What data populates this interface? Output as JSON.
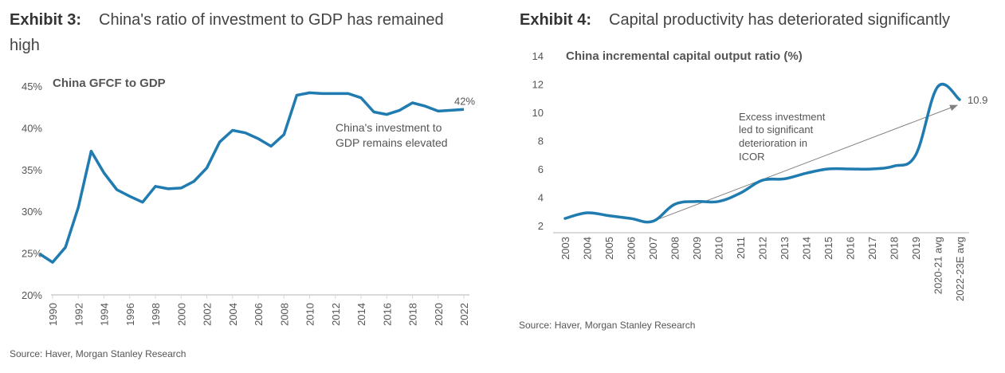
{
  "exhibit3": {
    "label": "Exhibit 3:",
    "title": "China's ratio of investment to GDP has remained high",
    "source": "Source: Haver, Morgan Stanley Research"
  },
  "exhibit4": {
    "label": "Exhibit 4:",
    "title": "Capital productivity has deteriorated significantly",
    "source": "Source: Haver, Morgan Stanley Research"
  },
  "colors": {
    "series": "#1f7bb0",
    "axis": "#d9d9d9",
    "arrow": "#808080",
    "text": "#555555"
  },
  "chart_data": [
    {
      "type": "line",
      "title": "China GFCF to GDP",
      "xlabel": "",
      "ylabel": "",
      "ylim": [
        20,
        45
      ],
      "yticks": [
        "20%",
        "25%",
        "30%",
        "35%",
        "40%",
        "45%"
      ],
      "ytick_values": [
        20,
        25,
        30,
        35,
        40,
        45
      ],
      "xticks": [
        "1990",
        "1992",
        "1994",
        "1996",
        "1998",
        "2000",
        "2002",
        "2004",
        "2006",
        "2008",
        "2010",
        "2012",
        "2014",
        "2016",
        "2018",
        "2020",
        "2022"
      ],
      "grid": false,
      "legend": "none",
      "x": [
        1989,
        1990,
        1991,
        1992,
        1993,
        1994,
        1995,
        1996,
        1997,
        1998,
        1999,
        2000,
        2001,
        2002,
        2003,
        2004,
        2005,
        2006,
        2007,
        2008,
        2009,
        2010,
        2011,
        2012,
        2013,
        2014,
        2015,
        2016,
        2017,
        2018,
        2019,
        2020,
        2021,
        2022
      ],
      "series": [
        {
          "name": "China GFCF to GDP (%)",
          "values": [
            24.9,
            23.9,
            25.7,
            30.5,
            37.2,
            34.6,
            32.6,
            31.8,
            31.1,
            33.0,
            32.7,
            32.8,
            33.6,
            35.2,
            38.3,
            39.7,
            39.4,
            38.7,
            37.8,
            39.2,
            43.9,
            44.2,
            44.1,
            44.1,
            44.1,
            43.6,
            41.9,
            41.6,
            42.1,
            43.0,
            42.6,
            42.0,
            42.1,
            42.2
          ]
        }
      ],
      "end_label": "42%",
      "annotation": [
        "China's investment to",
        "GDP remains elevated"
      ]
    },
    {
      "type": "line",
      "title": "China incremental capital output ratio (%)",
      "xlabel": "",
      "ylabel": "",
      "ylim": [
        2,
        14
      ],
      "yticks": [
        "2",
        "4",
        "6",
        "8",
        "10",
        "12",
        "14"
      ],
      "ytick_values": [
        2,
        4,
        6,
        8,
        10,
        12,
        14
      ],
      "categories": [
        "2003",
        "2004",
        "2005",
        "2006",
        "2007",
        "2008",
        "2009",
        "2010",
        "2011",
        "2012",
        "2013",
        "2014",
        "2015",
        "2016",
        "2017",
        "2018",
        "2019",
        "2020-21 avg",
        "2022-23E avg"
      ],
      "grid": false,
      "legend": "none",
      "series": [
        {
          "name": "ICOR (%)",
          "values": [
            2.5,
            2.9,
            2.7,
            2.5,
            2.3,
            3.5,
            3.7,
            3.7,
            4.3,
            5.2,
            5.3,
            5.7,
            6.0,
            6.0,
            6.0,
            6.2,
            7.0,
            11.8,
            10.9
          ]
        }
      ],
      "end_label": "10.9",
      "annotation": [
        "Excess investment",
        "led to significant",
        "deterioration in",
        "ICOR"
      ],
      "trend_arrow": {
        "from_category": "2007",
        "from_value": 2.3,
        "to_category": "2022-23E avg",
        "to_value": 10.5
      }
    }
  ]
}
